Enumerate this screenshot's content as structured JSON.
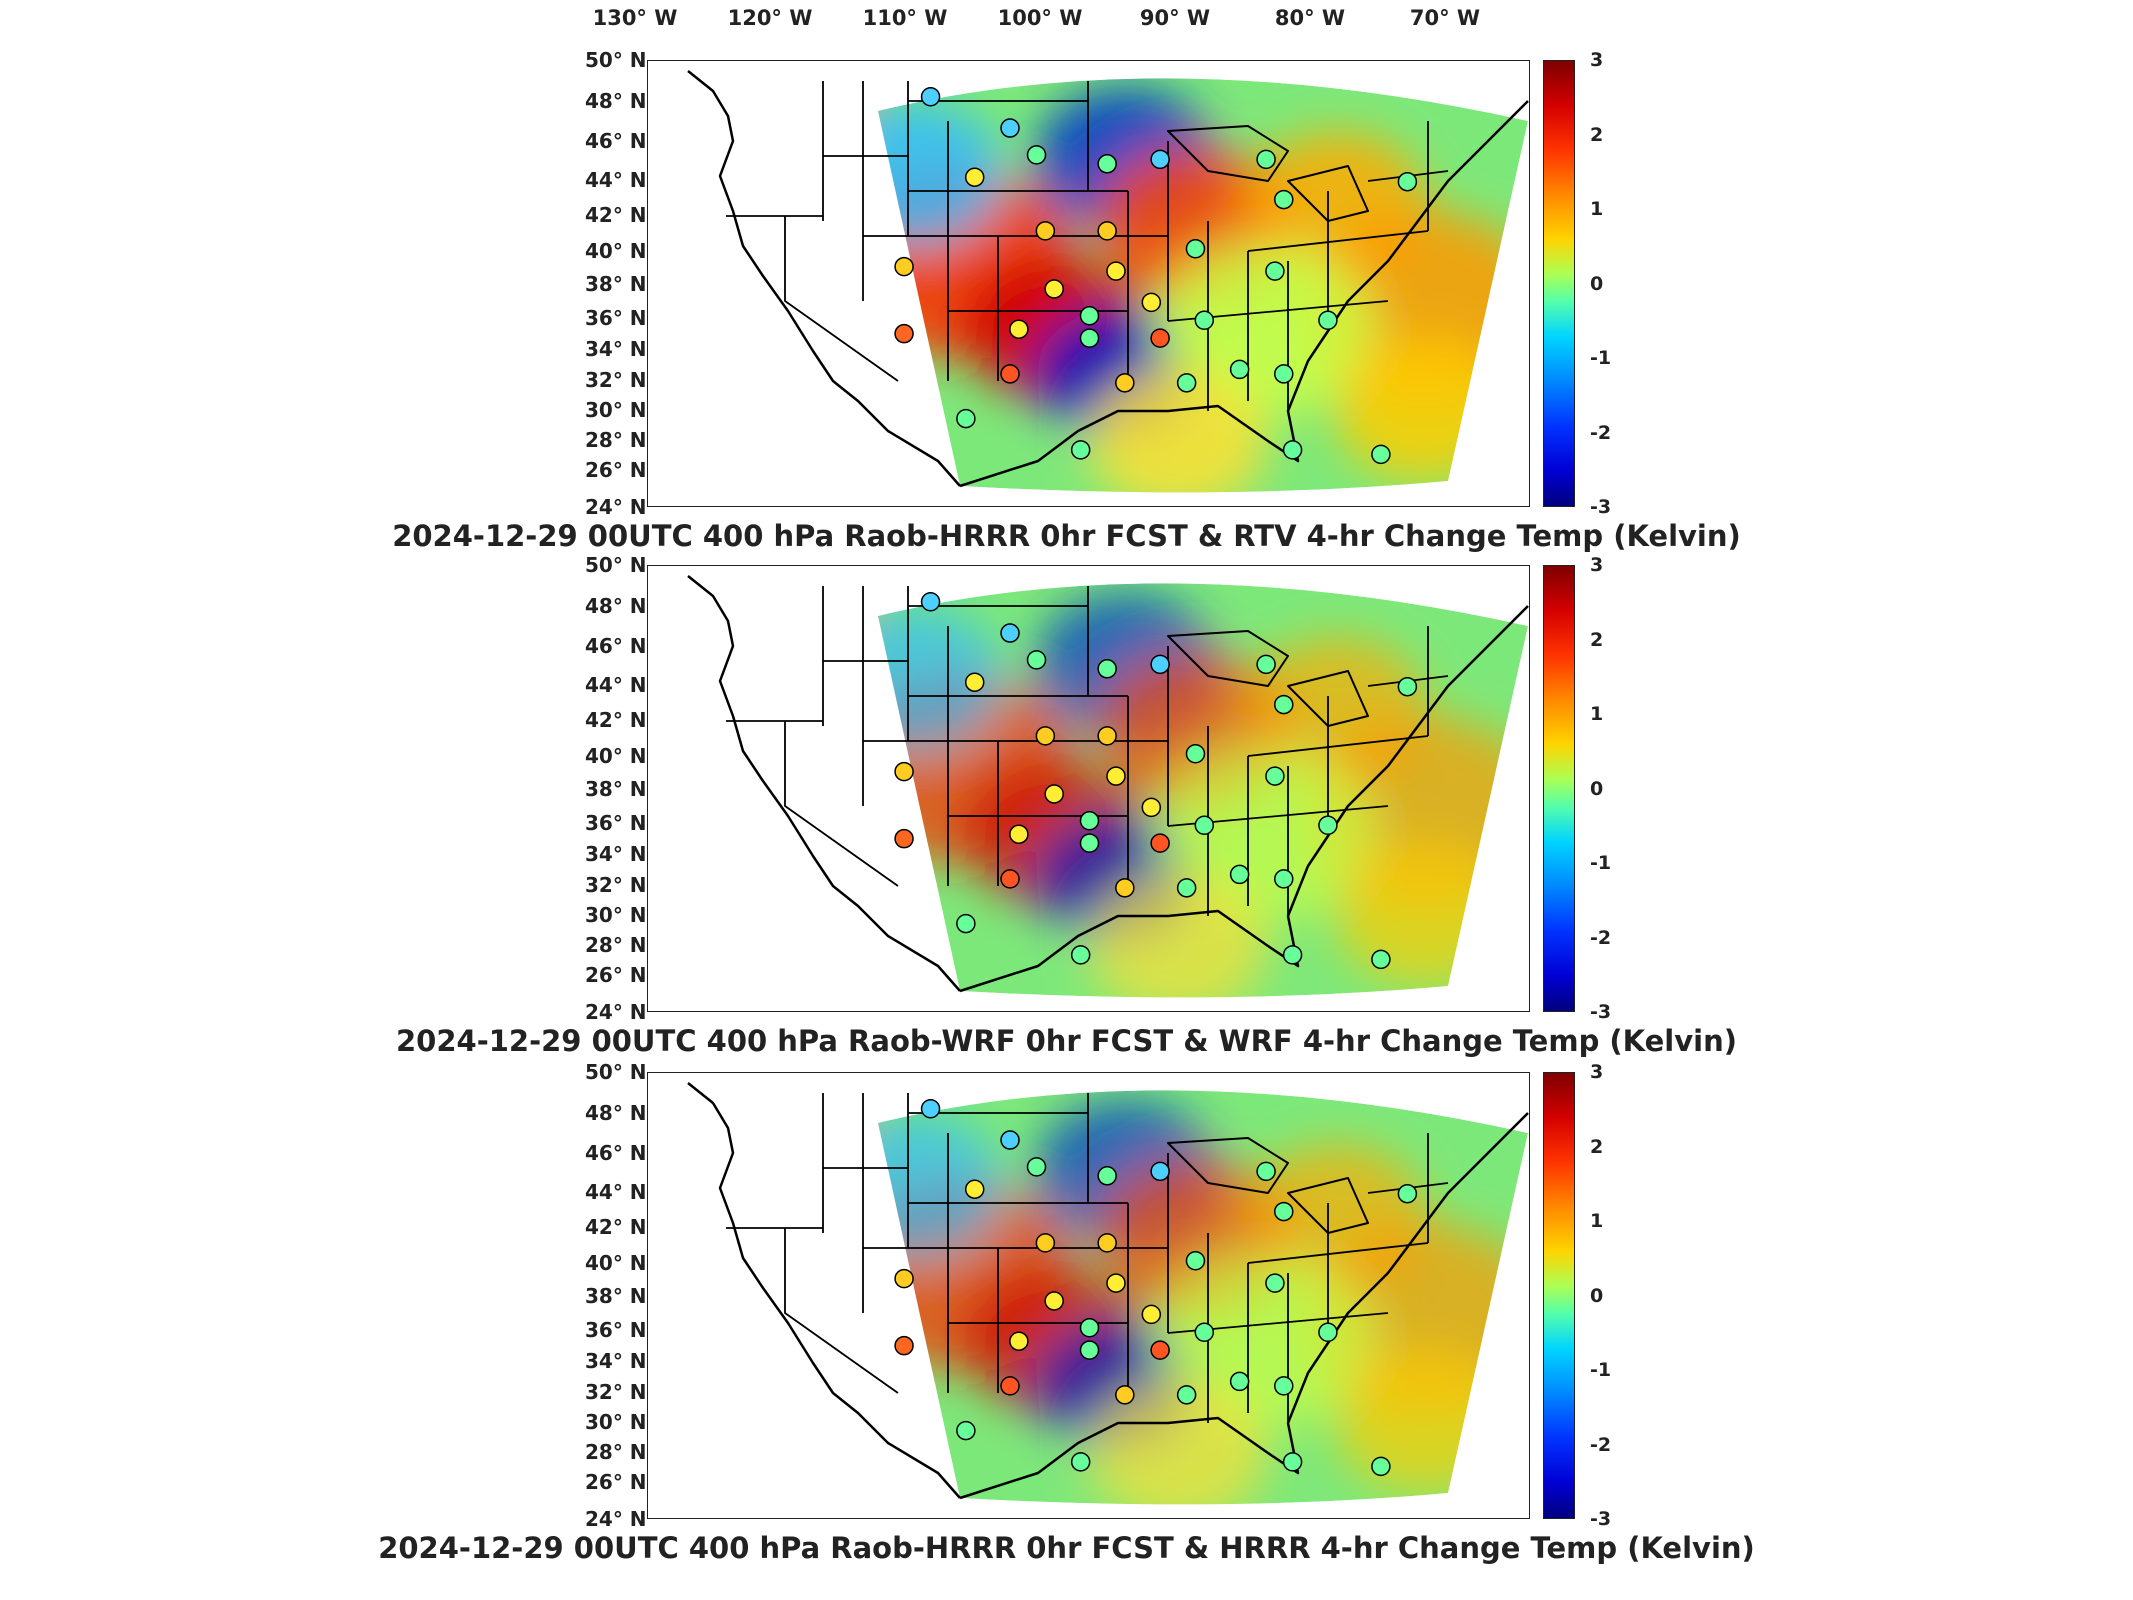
{
  "longitude_labels": [
    "130° W",
    "120° W",
    "110° W",
    "100° W",
    "90° W",
    "80° W",
    "70° W"
  ],
  "latitude_labels": [
    "50° N",
    "48° N",
    "46° N",
    "44° N",
    "42° N",
    "40° N",
    "38° N",
    "36° N",
    "34° N",
    "32° N",
    "30° N",
    "28° N",
    "26° N",
    "24° N"
  ],
  "colorbar": {
    "ticks": [
      "3",
      "2",
      "1",
      "0",
      "-1",
      "-2",
      "-3"
    ],
    "range": [
      -3,
      3
    ],
    "colormap": "jet",
    "colors": [
      "#7f0000",
      "#ff3300",
      "#ffd400",
      "#55ffaa",
      "#0088ff",
      "#00007f"
    ]
  },
  "panels": [
    {
      "title": "2024-12-29 00UTC 400 hPa Raob-HRRR 0hr FCST & RTV 4-hr Change Temp (Kelvin)"
    },
    {
      "title": "2024-12-29 00UTC 400 hPa Raob-WRF 0hr FCST & WRF 4-hr Change Temp (Kelvin)"
    },
    {
      "title": "2024-12-29 00UTC 400 hPa Raob-HRRR 0hr FCST & HRRR 4-hr Change Temp (Kelvin)"
    }
  ]
}
